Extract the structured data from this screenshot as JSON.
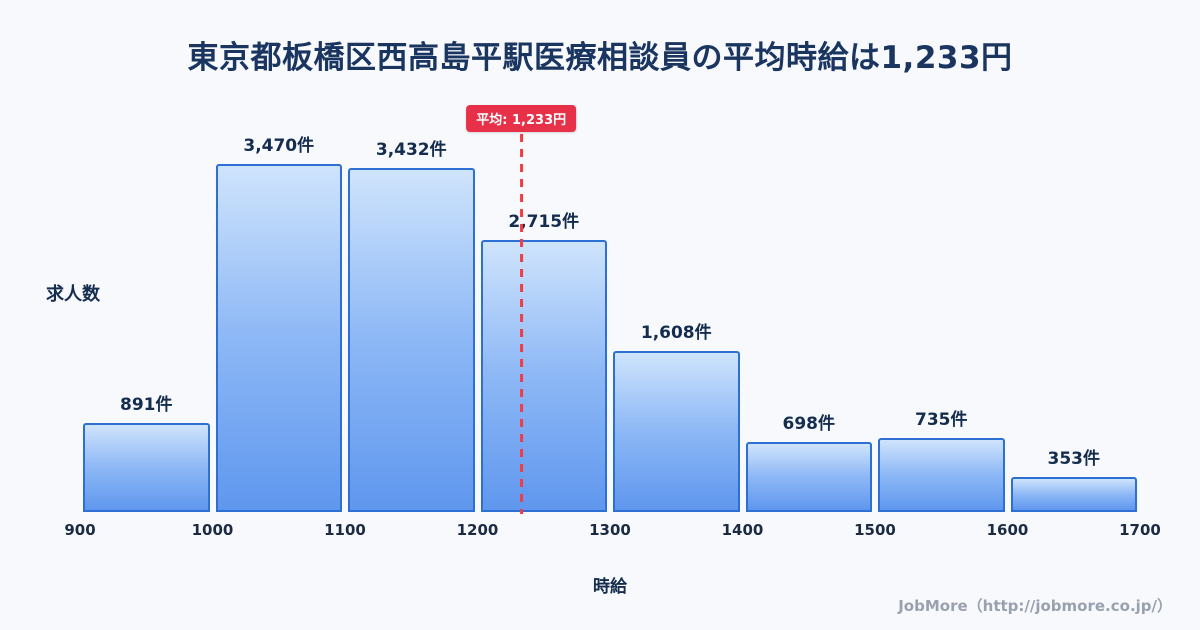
{
  "title": "東京都板橋区西高島平駅医療相談員の平均時給は1,233円",
  "footer": "JobMore（http://jobmore.co.jp/）",
  "chart_data": {
    "type": "bar",
    "title": "東京都板橋区西高島平駅医療相談員の平均時給は1,233円",
    "xlabel": "時給",
    "ylabel": "求人数",
    "bin_edges": [
      900,
      1000,
      1100,
      1200,
      1300,
      1400,
      1500,
      1600,
      1700
    ],
    "x_ticks": [
      "900",
      "1000",
      "1100",
      "1200",
      "1300",
      "1400",
      "1500",
      "1600",
      "1700"
    ],
    "values": [
      891,
      3470,
      3432,
      2715,
      1608,
      698,
      735,
      353
    ],
    "value_labels": [
      "891件",
      "3,470件",
      "3,432件",
      "2,715件",
      "1,608件",
      "698件",
      "735件",
      "353件"
    ],
    "ymax": 3470,
    "average": 1233,
    "average_label": "平均: 1,233円",
    "grid": false,
    "legend": "none",
    "bar_fill_top": "#cfe4fc",
    "bar_fill_bottom": "#5f97ee",
    "bar_border": "#2e6fd4",
    "average_color": "#e63148",
    "background": "#f7f9fd",
    "title_color": "#1a3560"
  }
}
